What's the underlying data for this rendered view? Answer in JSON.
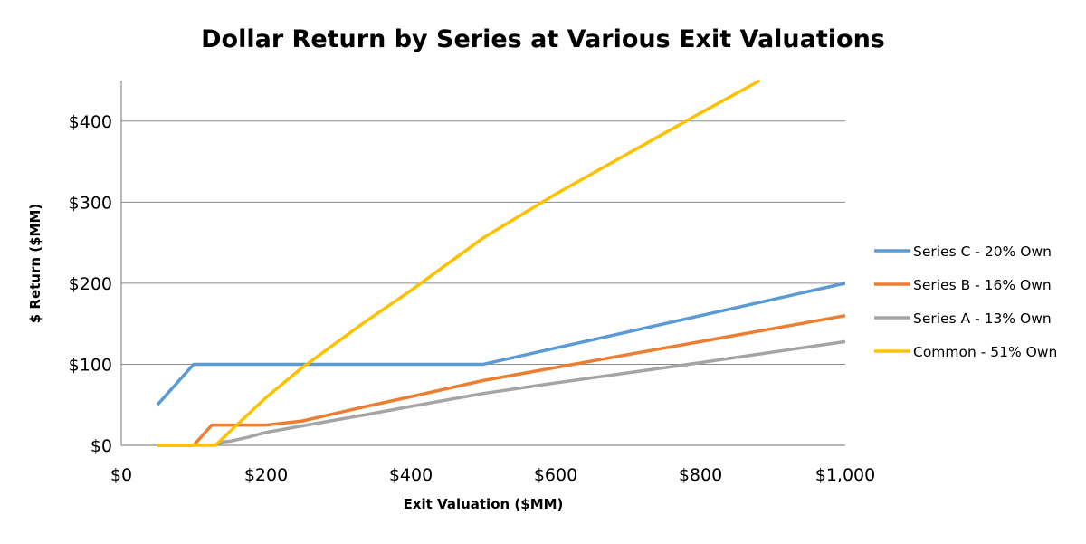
{
  "chart_data": {
    "type": "line",
    "title": "Dollar Return by Series at Various Exit Valuations",
    "xlabel": "Exit Valuation ($MM)",
    "ylabel": "$ Return ($MM)",
    "xlim": [
      0,
      1000
    ],
    "ylim": [
      0,
      450
    ],
    "x_ticks": [
      0,
      200,
      400,
      600,
      800,
      1000
    ],
    "x_tick_labels": [
      "$0",
      "$200",
      "$400",
      "$600",
      "$800",
      "$1,000"
    ],
    "y_ticks": [
      0,
      100,
      200,
      300,
      400
    ],
    "y_tick_labels": [
      "$0",
      "$100",
      "$200",
      "$300",
      "$400"
    ],
    "grid": "horizontal",
    "legend_position": "right",
    "series": [
      {
        "name": "Series C - 20% Own",
        "color": "#5B9BD5",
        "points": [
          [
            50,
            50
          ],
          [
            100,
            100
          ],
          [
            500,
            100
          ],
          [
            1000,
            200
          ]
        ]
      },
      {
        "name": "Series B - 16% Own",
        "color": "#ED7D31",
        "points": [
          [
            50,
            0
          ],
          [
            100,
            0
          ],
          [
            125,
            25
          ],
          [
            200,
            25
          ],
          [
            250,
            30
          ],
          [
            333,
            47
          ],
          [
            400,
            60
          ],
          [
            500,
            80
          ],
          [
            600,
            96
          ],
          [
            800,
            128
          ],
          [
            1000,
            160
          ]
        ]
      },
      {
        "name": "Series A - 13% Own",
        "color": "#A5A5A5",
        "points": [
          [
            130,
            0
          ],
          [
            140,
            4
          ],
          [
            150,
            5
          ],
          [
            175,
            10
          ],
          [
            200,
            16
          ],
          [
            250,
            24
          ],
          [
            333,
            37
          ],
          [
            400,
            48
          ],
          [
            500,
            64
          ],
          [
            600,
            77
          ],
          [
            800,
            102
          ],
          [
            1000,
            128
          ]
        ]
      },
      {
        "name": "Common - 51% Own",
        "color": "#FFC000",
        "points": [
          [
            50,
            0
          ],
          [
            130,
            0
          ],
          [
            150,
            17
          ],
          [
            200,
            59
          ],
          [
            250,
            96
          ],
          [
            333,
            150
          ],
          [
            400,
            191
          ],
          [
            500,
            256
          ],
          [
            600,
            310
          ],
          [
            800,
            410
          ],
          [
            882,
            450
          ]
        ]
      }
    ]
  }
}
